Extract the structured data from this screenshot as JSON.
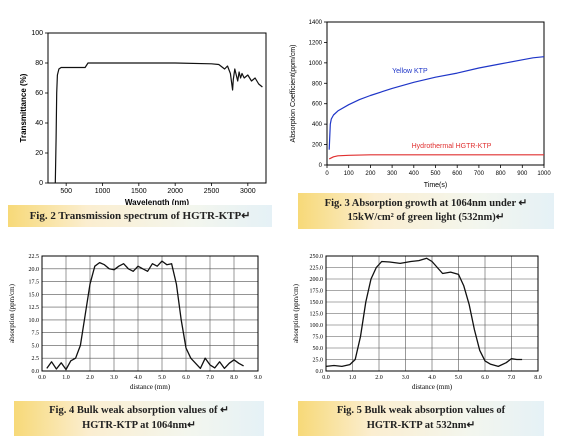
{
  "figures": [
    {
      "caption": "Fig. 2 Transmission spectrum of HGTR-KTP↵"
    },
    {
      "caption_line1": "Fig. 3 Absorption growth at 1064nm under ↵",
      "caption_line2": "15kW/cm² of green light (532nm)↵"
    },
    {
      "caption_line1": "Fig. 4 Bulk weak absorption values of ↵",
      "caption_line2": "HGTR-KTP at 1064nm↵"
    },
    {
      "caption_line1": "Fig. 5 Bulk weak absorption values of",
      "caption_line2": "HGTR-KTP at 532nm↵"
    }
  ],
  "chart_data": [
    {
      "type": "line",
      "xlabel": "Wavelength (nm)",
      "ylabel": "Transmittance (%)",
      "xlim": [
        250,
        3250
      ],
      "ylim": [
        0,
        100
      ],
      "xticks": [
        500,
        1000,
        1500,
        2000,
        2500,
        3000
      ],
      "yticks": [
        0,
        20,
        40,
        60,
        80,
        100
      ],
      "grid": false,
      "series": [
        {
          "x": [
            350,
            362,
            370,
            380,
            400,
            430,
            480,
            600,
            760,
            800,
            1000,
            1500,
            2000,
            2500,
            2600,
            2680,
            2720,
            2760,
            2790,
            2800,
            2820,
            2860,
            2880,
            2900,
            2920,
            2950,
            3000,
            3050,
            3100,
            3150,
            3200
          ],
          "y": [
            0,
            30,
            60,
            72,
            76,
            77,
            77,
            77,
            77,
            80,
            80,
            80,
            80,
            79.5,
            79,
            76,
            78,
            73,
            62,
            69,
            76,
            68,
            74,
            70,
            73,
            70,
            72,
            68,
            70,
            66,
            64
          ]
        }
      ]
    },
    {
      "type": "line",
      "xlabel": "Time(s)",
      "ylabel": "Absorption Coefficient(ppm/cm)",
      "xlim": [
        0,
        1000
      ],
      "ylim": [
        0,
        1400
      ],
      "xticks": [
        0,
        100,
        200,
        300,
        400,
        500,
        600,
        700,
        800,
        900,
        1000
      ],
      "yticks": [
        0,
        200,
        400,
        600,
        800,
        1000,
        1200,
        1400
      ],
      "grid": false,
      "annotations": [
        "Yellow KTP",
        "Hydrothermal HGTR-KTP"
      ],
      "series": [
        {
          "name": "Yellow KTP",
          "color": "#1f36c8",
          "x": [
            10,
            15,
            20,
            30,
            50,
            100,
            150,
            200,
            300,
            400,
            500,
            600,
            700,
            800,
            900,
            950,
            1000
          ],
          "y": [
            150,
            400,
            450,
            490,
            530,
            590,
            640,
            680,
            750,
            810,
            860,
            900,
            950,
            990,
            1030,
            1050,
            1060
          ]
        },
        {
          "name": "Hydrothermal HGTR-KTP",
          "color": "#e03030",
          "x": [
            10,
            30,
            50,
            100,
            200,
            400,
            600,
            800,
            1000
          ],
          "y": [
            60,
            80,
            90,
            95,
            100,
            100,
            100,
            100,
            100
          ]
        }
      ]
    },
    {
      "type": "line",
      "xlabel": "distance (mm)",
      "ylabel": "absorption (ppm/cm)",
      "xlim": [
        0,
        9
      ],
      "ylim": [
        0,
        22.5
      ],
      "xticks": [
        "0.0",
        "1.0",
        "2.0",
        "3.0",
        "4.0",
        "5.0",
        "6.0",
        "7.0",
        "8.0",
        "9.0"
      ],
      "yticks": [
        "0.0",
        "2.5",
        "5.0",
        "7.5",
        "10.0",
        "12.5",
        "15.0",
        "17.5",
        "20.0",
        "22.5"
      ],
      "grid": true,
      "series": [
        {
          "x": [
            0.2,
            0.4,
            0.6,
            0.8,
            1.0,
            1.2,
            1.4,
            1.6,
            1.8,
            2.0,
            2.2,
            2.4,
            2.6,
            2.8,
            3.0,
            3.2,
            3.4,
            3.6,
            3.8,
            4.0,
            4.2,
            4.4,
            4.6,
            4.8,
            5.0,
            5.2,
            5.4,
            5.6,
            5.8,
            6.0,
            6.2,
            6.4,
            6.6,
            6.8,
            7.0,
            7.2,
            7.4,
            7.6,
            7.8,
            8.0,
            8.2,
            8.4
          ],
          "y": [
            0.5,
            1.8,
            0.4,
            1.6,
            0.3,
            2.0,
            2.5,
            5.0,
            11.0,
            17.0,
            20.5,
            21.2,
            20.8,
            20.0,
            19.8,
            20.5,
            21.0,
            20.0,
            19.5,
            20.5,
            20.0,
            19.5,
            21.0,
            20.5,
            21.5,
            20.8,
            21.0,
            17.0,
            10.0,
            4.5,
            2.5,
            1.5,
            0.5,
            2.5,
            1.2,
            0.6,
            1.8,
            0.5,
            1.5,
            2.2,
            1.5,
            1.0
          ]
        }
      ]
    },
    {
      "type": "line",
      "xlabel": "distance (mm)",
      "ylabel": "absorption (ppm/cm)",
      "xlim": [
        0,
        8
      ],
      "ylim": [
        0,
        250
      ],
      "xticks": [
        "0.0",
        "1.0",
        "2.0",
        "3.0",
        "4.0",
        "5.0",
        "6.0",
        "7.0",
        "8.0"
      ],
      "yticks": [
        "0.0",
        "25.0",
        "50.0",
        "75.0",
        "100.0",
        "125.0",
        "150.0",
        "175.0",
        "200.0",
        "225.0",
        "250.0"
      ],
      "grid": true,
      "series": [
        {
          "x": [
            0.0,
            0.3,
            0.6,
            0.9,
            1.1,
            1.3,
            1.5,
            1.7,
            1.9,
            2.1,
            2.4,
            2.8,
            3.2,
            3.5,
            3.8,
            4.0,
            4.2,
            4.4,
            4.7,
            5.0,
            5.2,
            5.4,
            5.6,
            5.8,
            6.0,
            6.2,
            6.5,
            6.8,
            7.0,
            7.2,
            7.4
          ],
          "y": [
            10,
            12,
            10,
            14,
            25,
            75,
            150,
            200,
            225,
            238,
            237,
            234,
            238,
            240,
            245,
            238,
            225,
            212,
            215,
            210,
            185,
            145,
            90,
            45,
            22,
            15,
            10,
            18,
            27,
            25,
            25
          ]
        }
      ]
    }
  ]
}
